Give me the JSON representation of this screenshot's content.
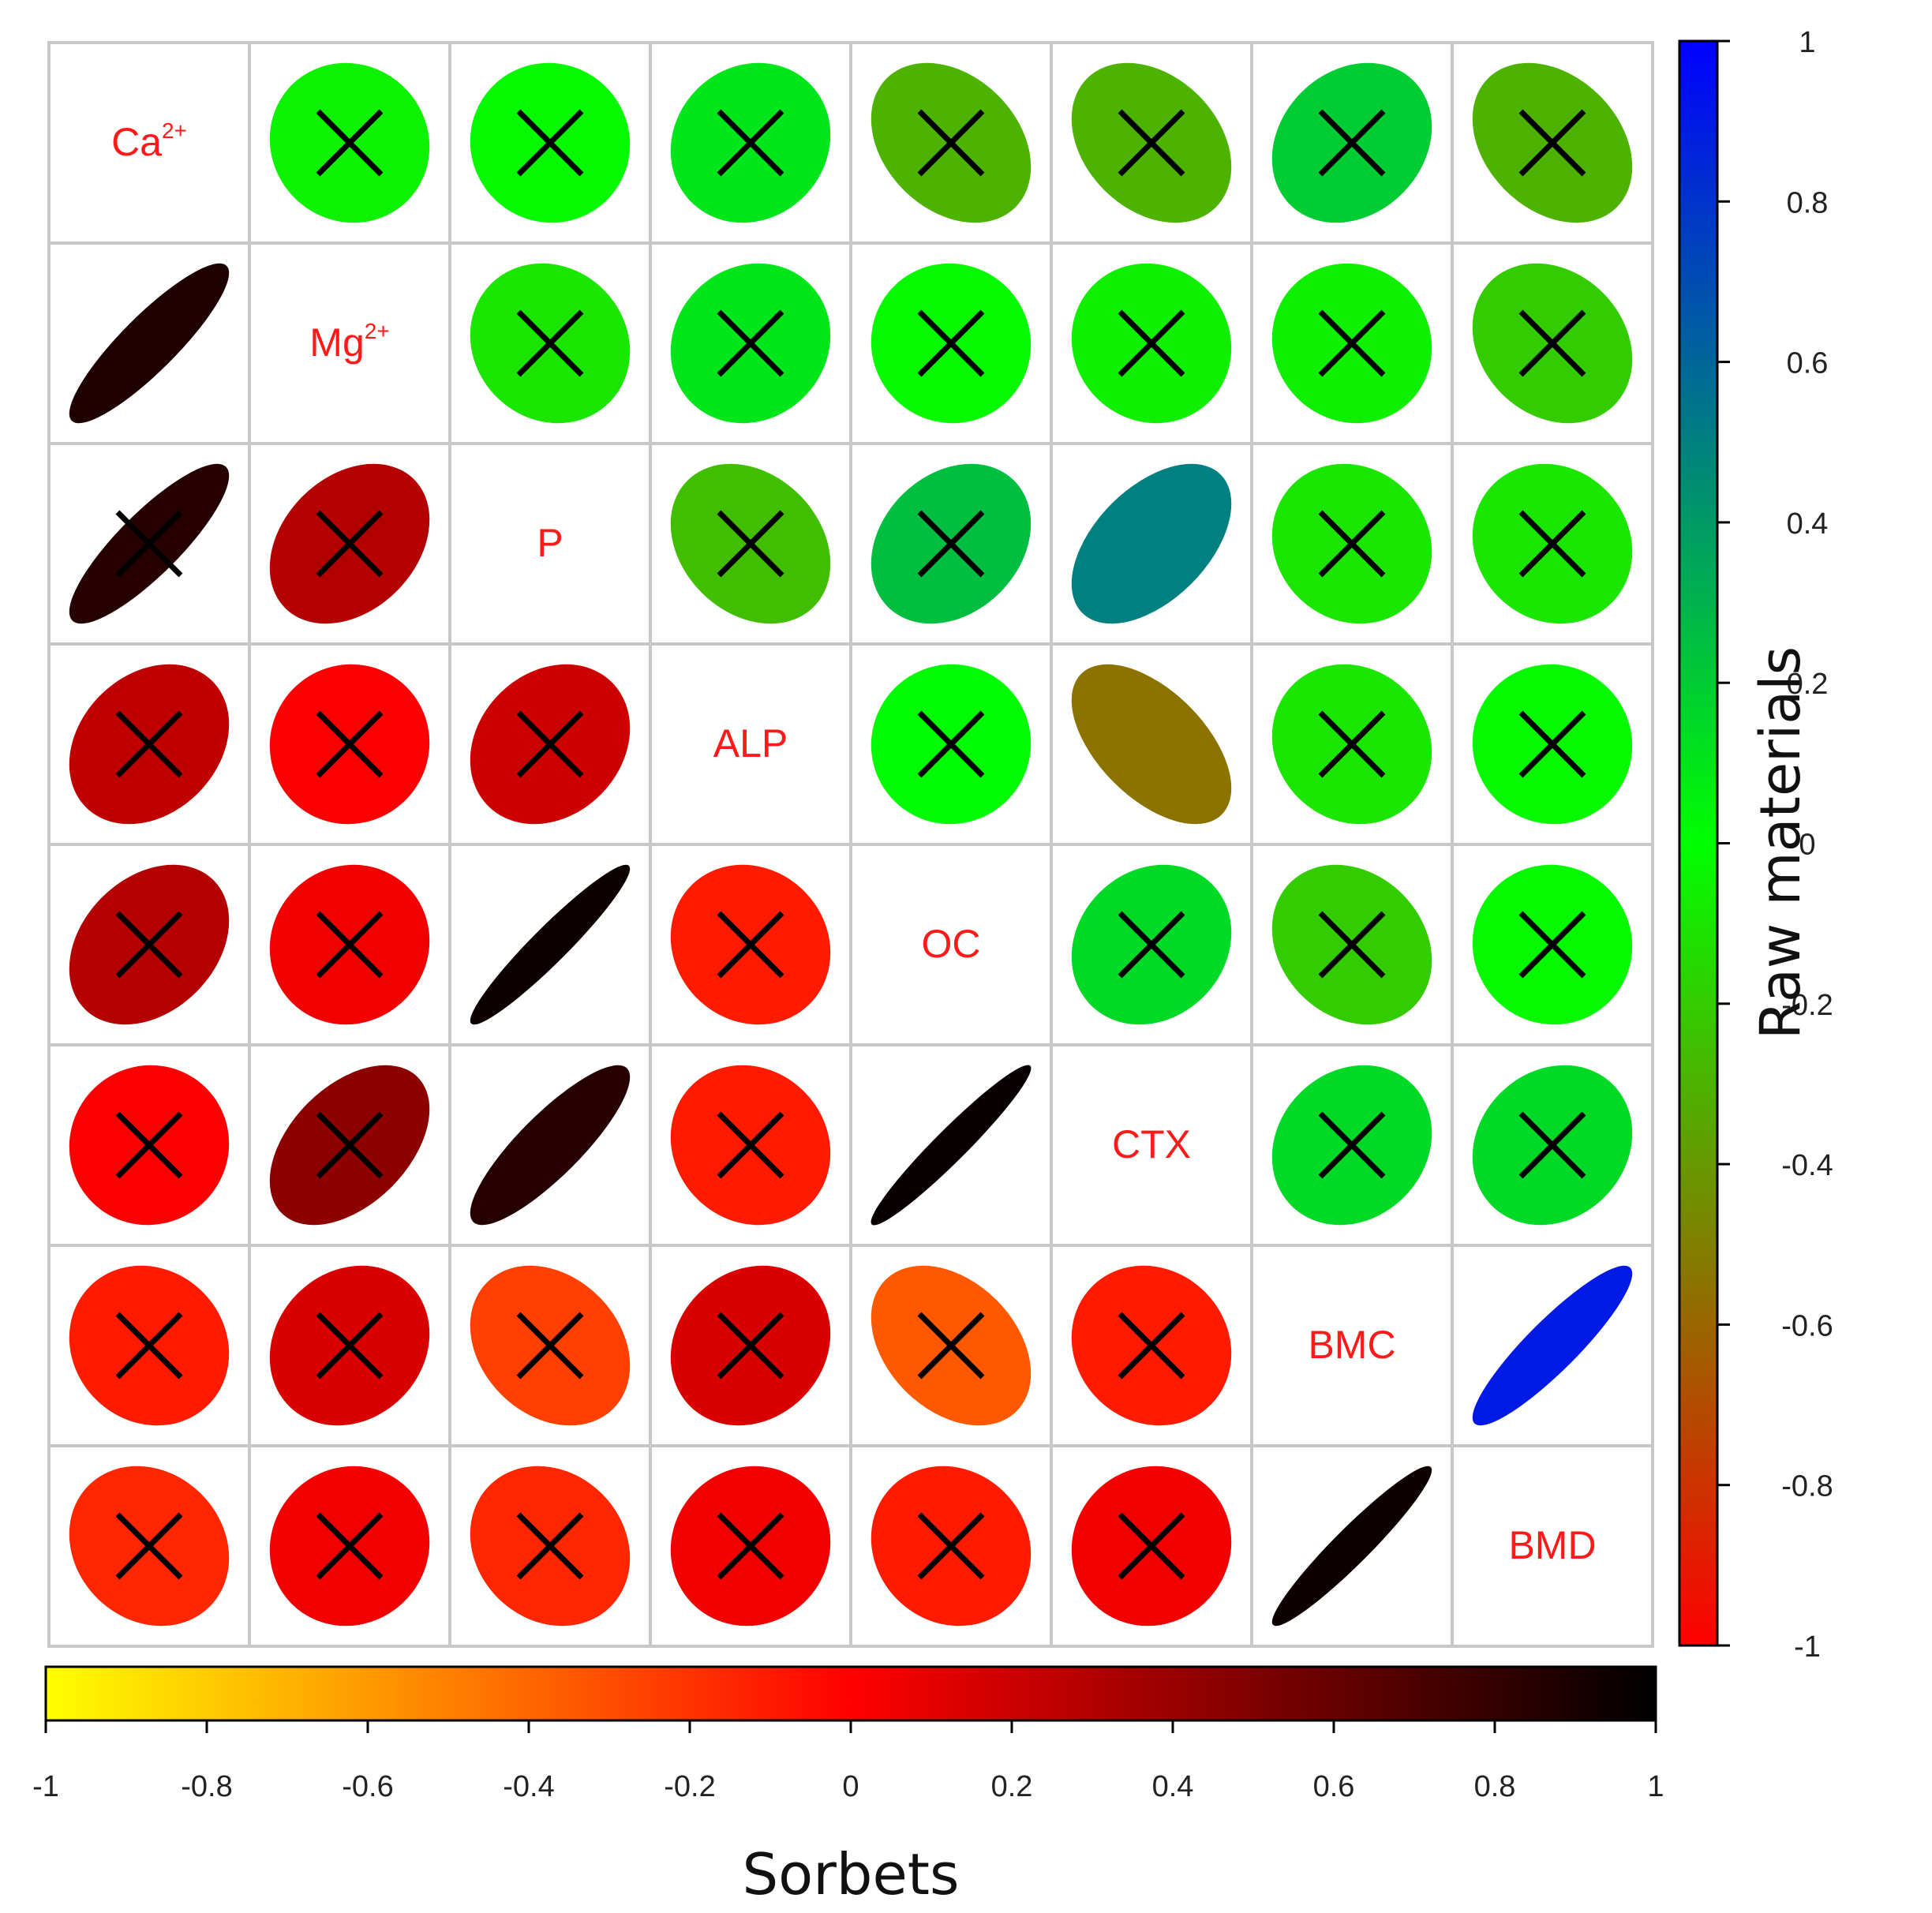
{
  "chart_data": {
    "type": "heatmap",
    "subtype": "correlation-ellipse-matrix",
    "variables": [
      {
        "name": "Ca",
        "sup": "2+"
      },
      {
        "name": "Mg",
        "sup": "2+"
      },
      {
        "name": "P",
        "sup": ""
      },
      {
        "name": "ALP",
        "sup": ""
      },
      {
        "name": "OC",
        "sup": ""
      },
      {
        "name": "CTX",
        "sup": ""
      },
      {
        "name": "BMC",
        "sup": ""
      },
      {
        "name": "BMD",
        "sup": ""
      }
    ],
    "upper_triangle": "Raw materials",
    "lower_triangle": "Sorbets",
    "raw_materials_colorbar": {
      "title": "Raw materials",
      "range": [
        -1,
        1
      ],
      "ticks": [
        "1",
        "0.8",
        "0.6",
        "0.4",
        "0.2",
        "0",
        "-0.2",
        "-0.4",
        "-0.6",
        "-0.8",
        "-1"
      ],
      "colors": {
        "low": "#ff0000",
        "mid": "#00ff00",
        "high": "#0000ff"
      }
    },
    "sorbets_colorbar": {
      "title": "Sorbets",
      "range": [
        -1,
        1
      ],
      "ticks": [
        "-1",
        "-0.8",
        "-0.6",
        "-0.4",
        "-0.2",
        "0",
        "0.2",
        "0.4",
        "0.6",
        "0.8",
        "1"
      ],
      "colors": {
        "low": "#ffff00",
        "mid": "#ff0000",
        "high": "#000000"
      }
    },
    "label_color": "#ff1a1a",
    "cross_color": "#000000",
    "matrix": [
      [
        null,
        -0.05,
        -0.02,
        0.1,
        -0.3,
        -0.3,
        0.2,
        -0.3
      ],
      [
        0.88,
        null,
        -0.1,
        0.1,
        -0.02,
        -0.06,
        -0.06,
        -0.2
      ],
      [
        0.85,
        0.3,
        null,
        -0.25,
        0.25,
        0.5,
        -0.1,
        -0.1
      ],
      [
        0.25,
        0.02,
        0.2,
        null,
        0.01,
        -0.55,
        -0.1,
        -0.02
      ],
      [
        0.3,
        0.05,
        0.95,
        -0.1,
        null,
        0.15,
        -0.2,
        -0.02
      ],
      [
        0.02,
        0.45,
        0.85,
        -0.1,
        0.97,
        null,
        0.15,
        0.15
      ],
      [
        -0.1,
        0.15,
        -0.25,
        0.15,
        -0.35,
        -0.1,
        null,
        0.9
      ],
      [
        -0.15,
        0.05,
        -0.15,
        0.05,
        -0.1,
        0.05,
        0.95,
        null
      ]
    ],
    "significant": [
      [
        false,
        true,
        true,
        true,
        true,
        true,
        true,
        true
      ],
      [
        false,
        false,
        true,
        true,
        true,
        true,
        true,
        true
      ],
      [
        true,
        true,
        false,
        true,
        true,
        false,
        true,
        true
      ],
      [
        true,
        true,
        true,
        false,
        true,
        false,
        true,
        true
      ],
      [
        true,
        true,
        false,
        true,
        false,
        true,
        true,
        true
      ],
      [
        true,
        true,
        false,
        true,
        false,
        false,
        true,
        true
      ],
      [
        true,
        true,
        true,
        true,
        true,
        true,
        false,
        false
      ],
      [
        true,
        true,
        true,
        true,
        true,
        true,
        false,
        false
      ]
    ]
  }
}
